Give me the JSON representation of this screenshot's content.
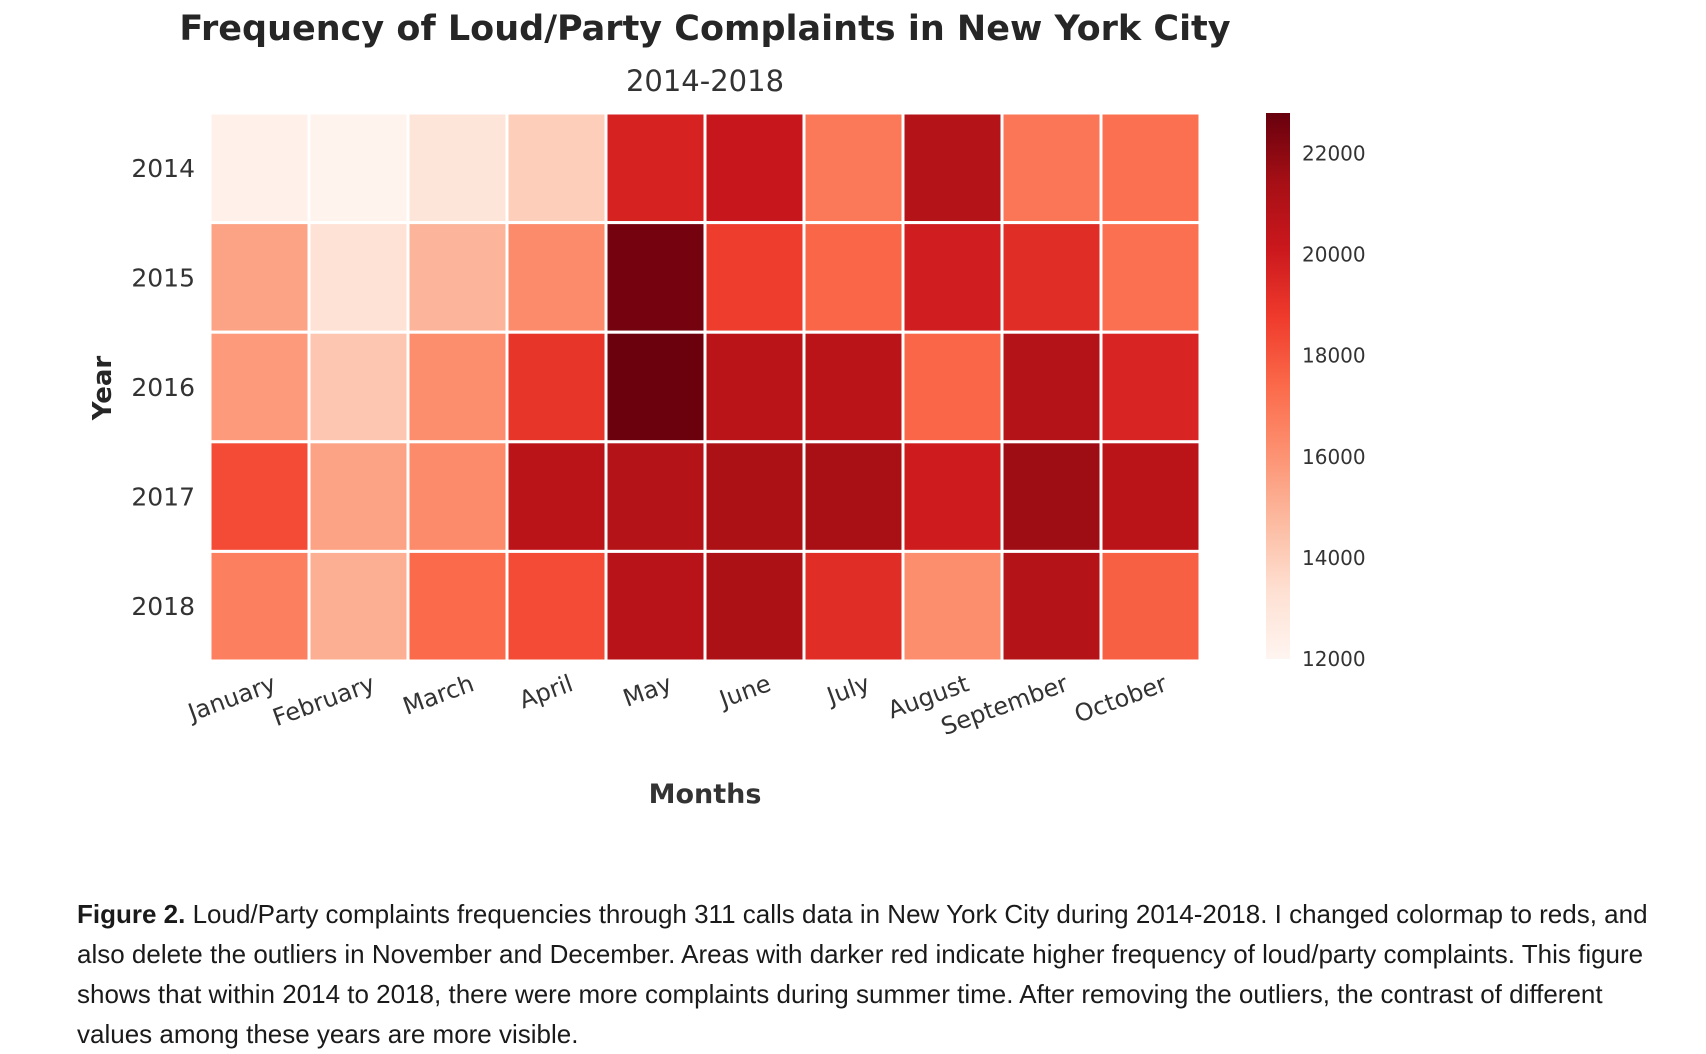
{
  "chart_data": {
    "type": "heatmap",
    "title": "Frequency of Loud/Party Complaints in New York City",
    "subtitle": "2014-2018",
    "xlabel": "Months",
    "ylabel": "Year",
    "x_categories": [
      "January",
      "February",
      "March",
      "April",
      "May",
      "June",
      "July",
      "August",
      "September",
      "October"
    ],
    "y_categories": [
      "2014",
      "2015",
      "2016",
      "2017",
      "2018"
    ],
    "values": [
      [
        12300,
        12150,
        13000,
        14000,
        19700,
        20200,
        16900,
        20900,
        17000,
        17200
      ],
      [
        15500,
        13200,
        14900,
        16300,
        22500,
        18700,
        17500,
        19900,
        19300,
        17200
      ],
      [
        15800,
        14300,
        16200,
        19000,
        22700,
        20700,
        20700,
        17500,
        20900,
        19600
      ],
      [
        18300,
        15500,
        16300,
        20700,
        20900,
        21200,
        21300,
        20000,
        21600,
        20700
      ],
      [
        16700,
        15100,
        17400,
        18300,
        20800,
        21200,
        19300,
        16200,
        20900,
        17700
      ]
    ],
    "colormap": "Reds",
    "colorbar": {
      "range": [
        12000,
        22800
      ],
      "ticks": [
        12000,
        14000,
        16000,
        18000,
        20000,
        22000
      ]
    },
    "grid": false
  },
  "caption": {
    "label": "Figure 2.",
    "text": " Loud/Party complaints frequencies through 311 calls data in New York City during 2014-2018. I changed colormap to reds, and also delete the outliers in November and December. Areas with darker red indicate higher frequency of loud/party complaints. This figure shows that within 2014 to 2018, there were more complaints during summer time. After removing the outliers, the contrast of different values among these years are more visible."
  }
}
